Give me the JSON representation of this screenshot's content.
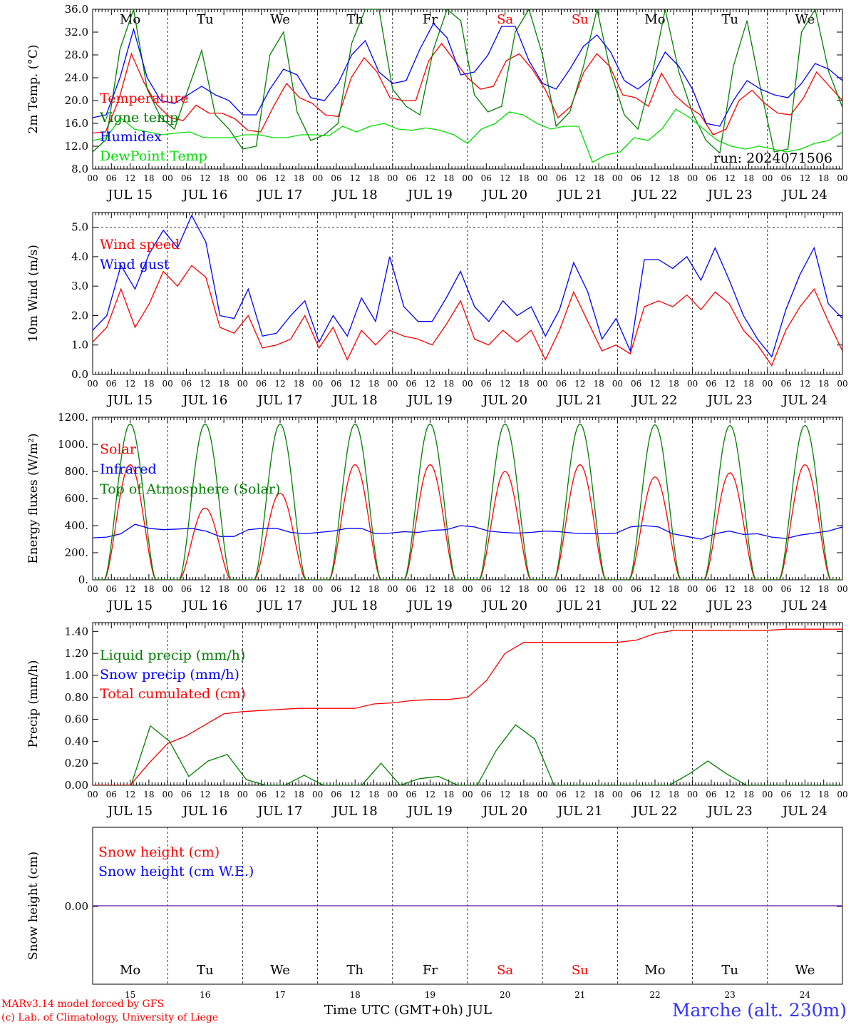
{
  "chart_data": [
    {
      "type": "line",
      "ylabel": "2m Temp. (°C)",
      "ylim": [
        8,
        36
      ],
      "yticks": [
        "8.0",
        "12.0",
        "16.0",
        "20.0",
        "24.0",
        "28.0",
        "32.0",
        "36.0"
      ],
      "annotation": "run: 2024071506",
      "day_labels": [
        "Mo",
        "Tu",
        "We",
        "Th",
        "Fr",
        "Sa",
        "Su",
        "Mo",
        "Tu",
        "We"
      ],
      "day_label_colors": [
        "#000000",
        "#000000",
        "#000000",
        "#000000",
        "#000000",
        "#ff0000",
        "#ff0000",
        "#000000",
        "#000000",
        "#000000"
      ],
      "hour_ticks": [
        "00",
        "06",
        "12",
        "18"
      ],
      "date_labels": [
        "JUL 15",
        "JUL 16",
        "JUL 17",
        "JUL 18",
        "JUL 19",
        "JUL 20",
        "JUL 21",
        "JUL 22",
        "JUL 23",
        "JUL 24"
      ],
      "x_step_hours": 6,
      "series": [
        {
          "name": "Temperature",
          "color": "#ff0000",
          "values": [
            14.3,
            14.5,
            20,
            28.2,
            23,
            19.2,
            17,
            16.5,
            19.2,
            17.8,
            17.8,
            16.8,
            14.8,
            14.5,
            19,
            23,
            20.5,
            19.5,
            17.5,
            17.2,
            24,
            27.5,
            25,
            20.5,
            20,
            20,
            27,
            30,
            27,
            24,
            22,
            22.5,
            27,
            28.2,
            25.5,
            22,
            17,
            19,
            25,
            28.2,
            26,
            21,
            20.5,
            19,
            24.8,
            21,
            19,
            17.5,
            14,
            15,
            20,
            21.8,
            19.5,
            17.8,
            17.5,
            20.5,
            25,
            22.5,
            20
          ]
        },
        {
          "name": "Vigne temp",
          "color": "#008000",
          "values": [
            11,
            13.2,
            29,
            36,
            22,
            17,
            15,
            22,
            28.8,
            17.5,
            15,
            11.5,
            12,
            28,
            32,
            18,
            13,
            14,
            16,
            30,
            36,
            36,
            22,
            19,
            17.5,
            29,
            36,
            34,
            21,
            18,
            19,
            32,
            36,
            28,
            15.5,
            18,
            26,
            36,
            25,
            17.5,
            15,
            24,
            36,
            25,
            17.8,
            13,
            10.8,
            26,
            34,
            22,
            11,
            11.5,
            32,
            36,
            25,
            18.8
          ]
        },
        {
          "name": "Humidex",
          "color": "#0000ff",
          "values": [
            17,
            17.5,
            24,
            32.5,
            24,
            20,
            19.5,
            21,
            22.5,
            21,
            20,
            17.5,
            17.5,
            22,
            25.5,
            24.5,
            20.5,
            20,
            23,
            28,
            30.5,
            25,
            23,
            23.5,
            29,
            33.5,
            31,
            24.5,
            25,
            28,
            33,
            33,
            27,
            23,
            22,
            25.5,
            29.5,
            31.5,
            28.5,
            23.5,
            22,
            24,
            28.5,
            26,
            22,
            16,
            15.5,
            20,
            23.5,
            22,
            21,
            20.5,
            23,
            26.5,
            25.5,
            23.5
          ]
        },
        {
          "name": "DewPoint Temp",
          "color": "#00e000",
          "values": [
            13,
            13.5,
            17,
            15,
            14.5,
            14,
            14.3,
            14.5,
            13.5,
            13.5,
            13.5,
            14,
            14,
            13.5,
            13.5,
            14,
            14,
            13.8,
            15.5,
            14.5,
            15.5,
            16,
            15,
            14.8,
            15.2,
            14.8,
            14,
            12.5,
            15,
            16,
            18,
            17.5,
            16,
            15,
            15.5,
            15.5,
            9.2,
            10.5,
            11,
            13.5,
            13,
            15,
            18.5,
            17,
            15,
            13,
            12,
            11.5,
            12,
            11.5,
            11,
            11.5,
            12.5,
            13,
            14.5
          ]
        }
      ]
    },
    {
      "type": "line",
      "ylabel": "10m Wind (m/s)",
      "ylim": [
        0,
        5.5
      ],
      "yticks": [
        "0.0",
        "1.0",
        "2.0",
        "3.0",
        "4.0",
        "5.0"
      ],
      "hour_ticks": [
        "00",
        "06",
        "12",
        "18"
      ],
      "date_labels": [
        "JUL 15",
        "JUL 16",
        "JUL 17",
        "JUL 18",
        "JUL 19",
        "JUL 20",
        "JUL 21",
        "JUL 22",
        "JUL 23",
        "JUL 24"
      ],
      "x_step_hours": 6,
      "series": [
        {
          "name": "Wind speed",
          "color": "#ff0000",
          "values": [
            1.1,
            1.6,
            2.9,
            1.6,
            2.4,
            3.5,
            3.0,
            3.7,
            3.3,
            1.6,
            1.4,
            2.0,
            0.9,
            1.0,
            1.2,
            2.0,
            0.9,
            1.6,
            0.5,
            1.5,
            1.0,
            1.5,
            1.3,
            1.2,
            1.0,
            1.7,
            2.5,
            1.2,
            1.0,
            1.5,
            1.1,
            1.5,
            0.5,
            1.5,
            2.8,
            1.8,
            0.8,
            1.0,
            0.7,
            2.3,
            2.5,
            2.3,
            2.7,
            2.2,
            2.8,
            2.4,
            1.5,
            1.0,
            0.3,
            1.5,
            2.3,
            2.9,
            1.8,
            0.8
          ]
        },
        {
          "name": "Wind gust",
          "color": "#0000ff",
          "values": [
            1.5,
            2.0,
            3.7,
            2.9,
            4.1,
            4.9,
            4.3,
            5.4,
            4.5,
            2.0,
            1.9,
            2.9,
            1.3,
            1.4,
            2.0,
            2.5,
            1.1,
            2.0,
            1.3,
            2.6,
            1.8,
            4.0,
            2.3,
            1.8,
            1.8,
            2.6,
            3.5,
            2.3,
            1.8,
            2.5,
            2.0,
            2.3,
            1.3,
            2.2,
            3.8,
            2.8,
            1.2,
            1.9,
            0.8,
            3.9,
            3.9,
            3.6,
            4.0,
            3.2,
            4.3,
            3.2,
            2.0,
            1.2,
            0.6,
            2.2,
            3.4,
            4.3,
            2.4,
            1.9
          ]
        }
      ]
    },
    {
      "type": "line",
      "ylabel": "Energy fluxes (W/m²)",
      "ylim": [
        0,
        1200
      ],
      "yticks": [
        "0.",
        "200.",
        "400.",
        "600.",
        "800.",
        "1000.",
        "1200."
      ],
      "hour_ticks": [
        "00",
        "06",
        "12",
        "18"
      ],
      "date_labels": [
        "JUL 15",
        "JUL 16",
        "JUL 17",
        "JUL 18",
        "JUL 19",
        "JUL 20",
        "JUL 21",
        "JUL 22",
        "JUL 23",
        "JUL 24"
      ],
      "x_step_hours": 6,
      "series": [
        {
          "name": "Solar",
          "color": "#ff0000",
          "peaks": [
            850,
            530,
            640,
            850,
            850,
            800,
            850,
            760,
            790,
            850
          ]
        },
        {
          "name": "Infrared",
          "color": "#0000ff",
          "values": [
            310,
            315,
            340,
            410,
            380,
            370,
            375,
            380,
            360,
            320,
            320,
            370,
            380,
            380,
            350,
            340,
            350,
            360,
            380,
            380,
            340,
            345,
            355,
            350,
            365,
            370,
            400,
            390,
            360,
            350,
            345,
            350,
            360,
            355,
            345,
            340,
            340,
            345,
            390,
            400,
            390,
            340,
            320,
            300,
            340,
            360,
            335,
            340,
            315,
            305,
            330,
            345,
            360,
            390
          ]
        },
        {
          "name": "Top of Atmosphere (Solar)",
          "color": "#008000",
          "peaks": [
            1150,
            1150,
            1150,
            1150,
            1150,
            1150,
            1150,
            1145,
            1140,
            1140
          ]
        }
      ]
    },
    {
      "type": "line",
      "ylabel": "Precip (mm/h)",
      "ylim": [
        0,
        1.48
      ],
      "yticks": [
        "0.00",
        "0.20",
        "0.40",
        "0.60",
        "0.80",
        "1.00",
        "1.20",
        "1.40"
      ],
      "hour_ticks": [
        "00",
        "06",
        "12",
        "18"
      ],
      "date_labels": [
        "JUL 15",
        "JUL 16",
        "JUL 17",
        "JUL 18",
        "JUL 19",
        "JUL 20",
        "JUL 21",
        "JUL 22",
        "JUL 23",
        "JUL 24"
      ],
      "x_step_hours": 6,
      "series": [
        {
          "name": "Liquid precip (mm/h)",
          "color": "#008000",
          "values": [
            0,
            0,
            0,
            0.54,
            0.4,
            0.08,
            0.22,
            0.28,
            0.05,
            0,
            0,
            0.09,
            0,
            0,
            0,
            0.2,
            0,
            0.06,
            0.08,
            0,
            0,
            0.32,
            0.55,
            0.42,
            0,
            0,
            0,
            0,
            0,
            0,
            0,
            0.1,
            0.22,
            0.1,
            0,
            0,
            0,
            0,
            0,
            0
          ]
        },
        {
          "name": "Snow precip (mm/h)",
          "color": "#0000ff",
          "values": []
        },
        {
          "name": "Total cumulated (cm)",
          "color": "#ff0000",
          "values": [
            0,
            0,
            0,
            0.2,
            0.38,
            0.45,
            0.55,
            0.65,
            0.67,
            0.68,
            0.69,
            0.7,
            0.7,
            0.7,
            0.7,
            0.74,
            0.75,
            0.77,
            0.78,
            0.78,
            0.8,
            0.95,
            1.2,
            1.3,
            1.3,
            1.3,
            1.3,
            1.3,
            1.3,
            1.32,
            1.38,
            1.41,
            1.41,
            1.41,
            1.41,
            1.41,
            1.41,
            1.42,
            1.42,
            1.42,
            1.42
          ]
        }
      ]
    },
    {
      "type": "line",
      "ylabel": "Snow height (cm)",
      "yticks": [
        "0.00"
      ],
      "day_labels": [
        "Mo",
        "Tu",
        "We",
        "Th",
        "Fr",
        "Sa",
        "Su",
        "Mo",
        "Tu",
        "We"
      ],
      "day_label_colors": [
        "#000000",
        "#000000",
        "#000000",
        "#000000",
        "#000000",
        "#ff0000",
        "#ff0000",
        "#000000",
        "#000000",
        "#000000"
      ],
      "day_numbers": [
        "15",
        "16",
        "17",
        "18",
        "19",
        "20",
        "21",
        "22",
        "23",
        "24"
      ],
      "xlabel": "Time UTC (GMT+0h) JUL",
      "series": [
        {
          "name": "Snow height (cm)",
          "color": "#ff0000",
          "values": [
            0,
            0
          ]
        },
        {
          "name": "Snow height (cm W.E.)",
          "color": "#0000ff",
          "values": [
            0,
            0
          ]
        }
      ]
    }
  ],
  "footer": {
    "model": "MARv3.14 model forced by GFS",
    "copyright": "(c) Lab. of Climatology, University of Liege",
    "station": "Marche (alt. 230m)"
  }
}
